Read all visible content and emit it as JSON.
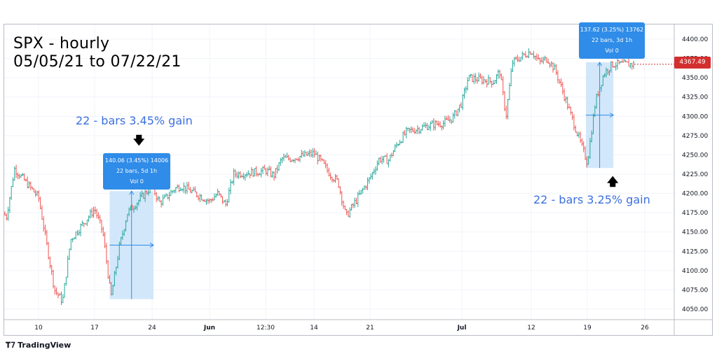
{
  "title": {
    "line1": "SPX - hourly",
    "line2": "05/05/21 to 07/22/21"
  },
  "annotations": {
    "left_label": "22 - bars 3.45% gain",
    "right_label": "22 - bars 3.25% gain",
    "left_box": {
      "line1": "140.06 (3.45%) 14006",
      "line2": "22 bars, 5d 1h",
      "line3": "Vol 0"
    },
    "right_box": {
      "line1": "137.62 (3.25%) 13762",
      "line2": "22 bars, 3d 1h",
      "line3": "Vol 0"
    }
  },
  "last_price": "4367.49",
  "footer": {
    "logo_text": "TradingView",
    "logo_icon": "tradingview-logo-icon"
  },
  "colors": {
    "up": "#26a69a",
    "down": "#ef5350",
    "measure_fill": "#cde4fa",
    "measure_line": "#2f8ce8",
    "label_blue": "#3b6fe0",
    "price_tag": "#d32f2f"
  },
  "chart_data": {
    "type": "ohlc",
    "title": "SPX - hourly",
    "subtitle": "05/05/21 to 07/22/21",
    "y_axis": {
      "position": "right",
      "ylim": [
        4030,
        4412
      ],
      "ticks": [
        "4050.00",
        "4075.00",
        "4100.00",
        "4125.00",
        "4150.00",
        "4175.00",
        "4200.00",
        "4225.00",
        "4250.00",
        "4275.00",
        "4300.00",
        "4325.00",
        "4350.00",
        "4375.00",
        "4400.00"
      ]
    },
    "x_axis": {
      "ticks": [
        "10",
        "17",
        "24",
        "Jun",
        "12:30",
        "14",
        "21",
        "Jul",
        "12",
        "19",
        "26"
      ]
    },
    "grid": true,
    "price_path": [
      {
        "x": "05/05/21",
        "y": 4180
      },
      {
        "x": "05/06/21",
        "y": 4170
      },
      {
        "x": "05/07/21",
        "y": 4232
      },
      {
        "x": "05/10/21",
        "y": 4195
      },
      {
        "x": "05/11/21",
        "y": 4135
      },
      {
        "x": "05/12/21",
        "y": 4075
      },
      {
        "x": "05/13/21",
        "y": 4060
      },
      {
        "x": "05/14/21",
        "y": 4140
      },
      {
        "x": "05/17/21",
        "y": 4180
      },
      {
        "x": "05/18/21",
        "y": 4150
      },
      {
        "x": "05/19/21",
        "y": 4065
      },
      {
        "x": "05/20/21",
        "y": 4130
      },
      {
        "x": "05/21/21",
        "y": 4175
      },
      {
        "x": "05/24/21",
        "y": 4210
      },
      {
        "x": "05/25/21",
        "y": 4188
      },
      {
        "x": "05/26/21",
        "y": 4195
      },
      {
        "x": "05/27/21",
        "y": 4205
      },
      {
        "x": "05/28/21",
        "y": 4210
      },
      {
        "x": "06/01/21",
        "y": 4190
      },
      {
        "x": "06/02/21",
        "y": 4200
      },
      {
        "x": "06/03/21",
        "y": 4185
      },
      {
        "x": "06/04/21",
        "y": 4225
      },
      {
        "x": "06/07/21",
        "y": 4228
      },
      {
        "x": "06/08/21",
        "y": 4230
      },
      {
        "x": "06/09/21",
        "y": 4223
      },
      {
        "x": "06/10/21",
        "y": 4245
      },
      {
        "x": "06/11/21",
        "y": 4245
      },
      {
        "x": "06/14/21",
        "y": 4252
      },
      {
        "x": "06/15/21",
        "y": 4240
      },
      {
        "x": "06/16/21",
        "y": 4225
      },
      {
        "x": "06/17/21",
        "y": 4215
      },
      {
        "x": "06/18/21",
        "y": 4170
      },
      {
        "x": "06/21/21",
        "y": 4220
      },
      {
        "x": "06/22/21",
        "y": 4245
      },
      {
        "x": "06/23/21",
        "y": 4243
      },
      {
        "x": "06/24/21",
        "y": 4265
      },
      {
        "x": "06/25/21",
        "y": 4280
      },
      {
        "x": "06/28/21",
        "y": 4290
      },
      {
        "x": "06/29/21",
        "y": 4291
      },
      {
        "x": "06/30/21",
        "y": 4298
      },
      {
        "x": "07/01/21",
        "y": 4318
      },
      {
        "x": "07/02/21",
        "y": 4350
      },
      {
        "x": "07/06/21",
        "y": 4345
      },
      {
        "x": "07/07/21",
        "y": 4358
      },
      {
        "x": "07/08/21",
        "y": 4300
      },
      {
        "x": "07/09/21",
        "y": 4370
      },
      {
        "x": "07/12/21",
        "y": 4385
      },
      {
        "x": "07/13/21",
        "y": 4370
      },
      {
        "x": "07/14/21",
        "y": 4375
      },
      {
        "x": "07/15/21",
        "y": 4360
      },
      {
        "x": "07/16/21",
        "y": 4330
      },
      {
        "x": "07/19/21",
        "y": 4240
      },
      {
        "x": "07/20/21",
        "y": 4320
      },
      {
        "x": "07/21/21",
        "y": 4355
      },
      {
        "x": "07/22/21",
        "y": 4367.49
      }
    ],
    "measurements": [
      {
        "start_bar": "05/19/21",
        "end_bar": "05/24/21",
        "change": 140.06,
        "percent": 3.45,
        "bars": 22,
        "from_price": 4063,
        "to_price": 4203
      },
      {
        "start_bar": "07/19/21",
        "end_bar": "07/22/21",
        "change": 137.62,
        "percent": 3.25,
        "bars": 22,
        "from_price": 4233,
        "to_price": 4370
      }
    ]
  }
}
